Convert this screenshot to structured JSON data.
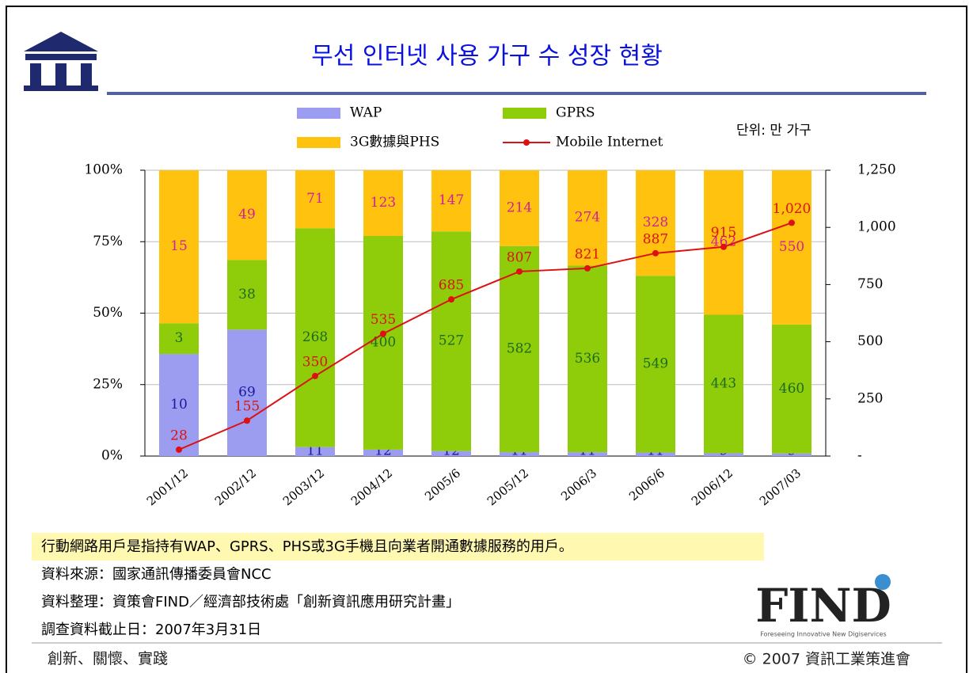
{
  "header": {
    "title": "무선 인터넷 사용 가구 수 성장 현황"
  },
  "chart_data": {
    "type": "percent_stacked_bar_line",
    "unit_note": "단위: 만 가구",
    "categories": [
      "2001/12",
      "2002/12",
      "2003/12",
      "2004/12",
      "2005/6",
      "2005/12",
      "2006/3",
      "2006/6",
      "2006/12",
      "2007/03"
    ],
    "series": [
      {
        "name": "WAP",
        "color": "#9c9cf0",
        "label_color": "#1a1aa0",
        "values": [
          10,
          69,
          11,
          12,
          12,
          11,
          11,
          11,
          9,
          9
        ]
      },
      {
        "name": "GPRS",
        "color": "#8fcc0a",
        "label_color": "#1e6a1e",
        "values": [
          3,
          38,
          268,
          400,
          527,
          582,
          536,
          549,
          443,
          460
        ]
      },
      {
        "name": "3G數據與PHS",
        "color": "#ffc20e",
        "label_color": "#d0209a",
        "values": [
          15,
          49,
          71,
          123,
          147,
          214,
          274,
          328,
          462,
          550
        ]
      },
      {
        "name": "Mobile Internet",
        "type": "line",
        "axis": "y2",
        "color": "#dd1111",
        "values": [
          28,
          155,
          350,
          535,
          685,
          807,
          821,
          887,
          915,
          1020
        ],
        "value_labels": [
          "28",
          "155",
          "350",
          "535",
          "685",
          "807",
          "821",
          "887",
          "915",
          "1,020"
        ]
      }
    ],
    "ylim": [
      0,
      100
    ],
    "yticks": [
      {
        "value": 0,
        "label": "0%"
      },
      {
        "value": 25,
        "label": "25%"
      },
      {
        "value": 50,
        "label": "50%"
      },
      {
        "value": 75,
        "label": "75%"
      },
      {
        "value": 100,
        "label": "100%"
      }
    ],
    "y2lim": [
      0,
      1250
    ],
    "y2ticks": [
      {
        "value": 0,
        "label": "-"
      },
      250,
      500,
      750,
      {
        "value": 1000,
        "label": "1,000"
      },
      {
        "value": 1250,
        "label": "1,250"
      }
    ],
    "grid": true
  },
  "note": "行動網路用戶是指持有WAP、GPRS、PHS或3G手機且向業者開通數據服務的用戶。",
  "sources": [
    "資料來源：國家通訊傳播委員會NCC",
    "資料整理：資策會FIND／經濟部技術處「創新資訊應用研究計畫」",
    "調查資料截止日：2007年3月31日"
  ],
  "logo": {
    "name": "FIND",
    "tagline": "Foreseeing Innovative New Digiservices"
  },
  "footer": {
    "left": "創新、關懷、實踐",
    "right": "© 2007 資訊工業策進會"
  }
}
